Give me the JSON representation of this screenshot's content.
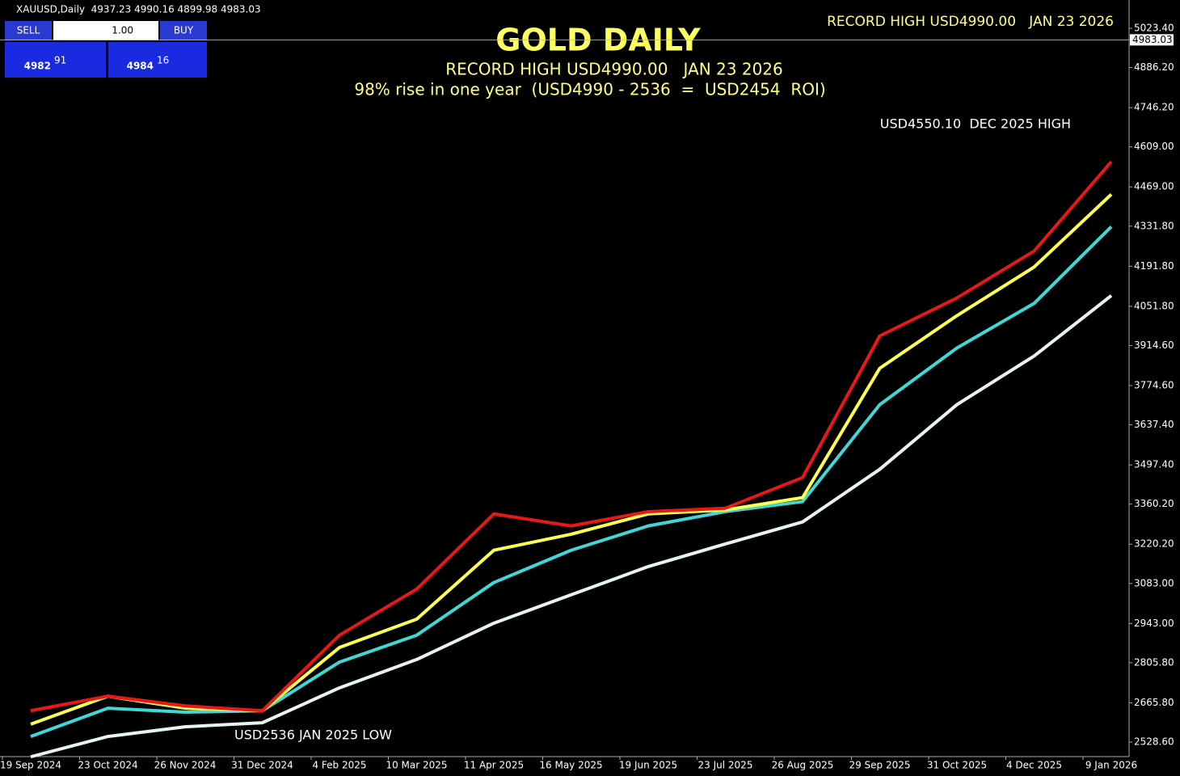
{
  "chart_data": {
    "type": "line",
    "title": "GOLD DAILY",
    "subtitle": "RECORD HIGH USD4990.00   JAN 23 2026",
    "subtitle2": "98% rise in one year  (USD4990 - 2536  =  USD2454  ROI)",
    "annotations": [
      "RECORD HIGH USD4990.00   JAN 23 2026",
      "USD4550.10  DEC 2025 HIGH",
      "USD2536 JAN 2025 LOW"
    ],
    "x": [
      "19 Sep 2024",
      "23 Oct 2024",
      "26 Nov 2024",
      "31 Dec 2024",
      "4 Feb 2025",
      "10 Mar 2025",
      "11 Apr 2025",
      "16 May 2025",
      "19 Jun 2025",
      "23 Jul 2025",
      "26 Aug 2025",
      "29 Sep 2025",
      "31 Oct 2025",
      "4 Dec 2025",
      "9 Jan 2026"
    ],
    "series": [
      {
        "color": "#e8f4f4",
        "values": [
          2477,
          2548,
          2582,
          2596,
          2718,
          2817,
          2944,
          3043,
          3142,
          3221,
          3298,
          3482,
          3708,
          3878,
          4089
        ]
      },
      {
        "color": "#3fd8d8",
        "values": [
          2548,
          2647,
          2633,
          2638,
          2808,
          2902,
          3086,
          3199,
          3284,
          3334,
          3369,
          3708,
          3906,
          4062,
          4330
        ]
      },
      {
        "color": "#ffff50",
        "values": [
          2591,
          2689,
          2647,
          2638,
          2859,
          2958,
          3199,
          3255,
          3326,
          3340,
          3383,
          3835,
          4019,
          4189,
          4443
        ]
      },
      {
        "color": "#e81818",
        "values": [
          2638,
          2689,
          2655,
          2638,
          2902,
          3063,
          3326,
          3284,
          3334,
          3346,
          3453,
          3948,
          4081,
          4245,
          4557
        ]
      }
    ],
    "last_price": 4983.03,
    "ylim": [
      2477.7,
      5122.4
    ],
    "yticks": [
      {
        "value": 2528.6,
        "label": "2528.60"
      },
      {
        "value": 2665.8,
        "label": "2665.80"
      },
      {
        "value": 2805.8,
        "label": "2805.80"
      },
      {
        "value": 2943,
        "label": "2943.00"
      },
      {
        "value": 3083,
        "label": "3083.00"
      },
      {
        "value": 3220.2,
        "label": "3220.20"
      },
      {
        "value": 3360.2,
        "label": "3360.20"
      },
      {
        "value": 3497.4,
        "label": "3497.40"
      },
      {
        "value": 3637.4,
        "label": "3637.40"
      },
      {
        "value": 3774.6,
        "label": "3774.60"
      },
      {
        "value": 3914.6,
        "label": "3914.60"
      },
      {
        "value": 4051.8,
        "label": "4051.80"
      },
      {
        "value": 4191.8,
        "label": "4191.80"
      },
      {
        "value": 4331.8,
        "label": "4331.80"
      },
      {
        "value": 4469,
        "label": "4469.00"
      },
      {
        "value": 4609,
        "label": "4609.00"
      },
      {
        "value": 4746.2,
        "label": "4746.20"
      },
      {
        "value": 4886.2,
        "label": "4886.20"
      },
      {
        "value": 5023.4,
        "label": "5023.40"
      }
    ],
    "grid": false
  },
  "header": "XAUUSD,Daily  4937.23 4990.16 4899.98 4983.03",
  "trade_panel": {
    "sell": "SELL",
    "lots": "1.00",
    "buy": "BUY",
    "sell_big": "4982",
    "sell_small": "91",
    "buy_big": "4984",
    "buy_small": "16"
  }
}
